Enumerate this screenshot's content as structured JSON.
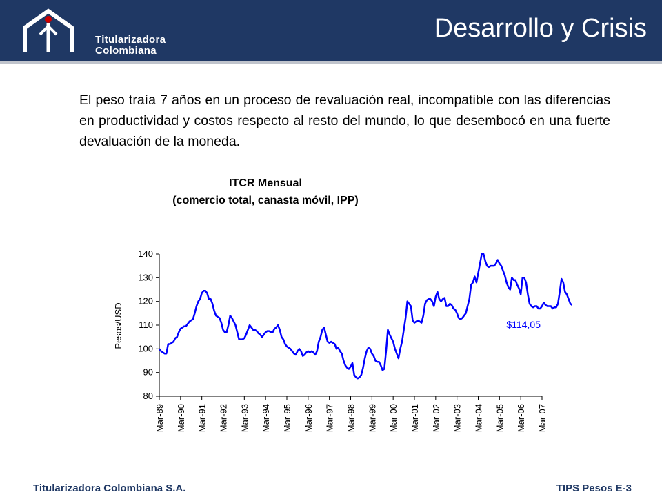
{
  "header": {
    "title": "Desarrollo y Crisis",
    "logo_line1": "Titularizadora",
    "logo_line2": "Colombiana",
    "colors": {
      "bar": "#1f3864",
      "logo_accent": "#cc0000"
    }
  },
  "body": {
    "intro": "El peso traía 7 años en un proceso de revaluación real, incompatible con las diferencias en productividad y costos respecto al resto del mundo, lo que desembocó en una fuerte devaluación de la moneda."
  },
  "footer": {
    "company": "Titularizadora Colombiana S.A.",
    "code": "TIPS Pesos E-3"
  },
  "chart_data": {
    "type": "line",
    "title": "ITCR Mensual",
    "subtitle": "(comercio total, canasta móvil, IPP)",
    "ylabel": "Pesos/USD",
    "xlabel": "",
    "ylim": [
      80,
      140
    ],
    "yticks": [
      80,
      90,
      100,
      110,
      120,
      130,
      140
    ],
    "xticks": [
      "Mar-89",
      "Mar-90",
      "Mar-91",
      "Mar-92",
      "Mar-93",
      "Mar-94",
      "Mar-95",
      "Mar-96",
      "Mar-97",
      "Mar-98",
      "Mar-99",
      "Mar-00",
      "Mar-01",
      "Mar-02",
      "Mar-03",
      "Mar-04",
      "Mar-05",
      "Mar-06",
      "Mar-07"
    ],
    "last_value_label": "$114,05",
    "line_color": "#0000ff",
    "grid": false,
    "legend": "none",
    "series": [
      {
        "x_start": "1989-03",
        "values": [
          100,
          99,
          98.5,
          98,
          98,
          102,
          102,
          102.5,
          103,
          104.5,
          105,
          107,
          108.5,
          109,
          109.5,
          109.5,
          110.5,
          111.5,
          112,
          112.5,
          115,
          118,
          120,
          121,
          123.5,
          124.5,
          124.5,
          123.5,
          121,
          121,
          119,
          116,
          114,
          113.5,
          113,
          111,
          108,
          107,
          107,
          110,
          114,
          113,
          111.5,
          110,
          107,
          104,
          104,
          104,
          104.5,
          106,
          108,
          110,
          109,
          108,
          108,
          107.5,
          106.5,
          106,
          105,
          106,
          107,
          107.5,
          107.5,
          107,
          107,
          108.5,
          109,
          110,
          108,
          105,
          104,
          102,
          101,
          100.5,
          100,
          99,
          98,
          97.5,
          99,
          100,
          99,
          97,
          97.5,
          98.5,
          99,
          98.5,
          99,
          98.5,
          97.5,
          99,
          103,
          105,
          108,
          109,
          106,
          103,
          102.5,
          103,
          102.5,
          102,
          100,
          100.5,
          99,
          98,
          95,
          93,
          92,
          91.5,
          92.5,
          94,
          89,
          88,
          87.5,
          88,
          89,
          92,
          96,
          99,
          100.5,
          100,
          98,
          97,
          95,
          94.5,
          94.5,
          93,
          91,
          91.5,
          99,
          108,
          106,
          104.5,
          103,
          100,
          98,
          96,
          100,
          103,
          108,
          113,
          120,
          119,
          118,
          112,
          111,
          111.5,
          112,
          111.5,
          111,
          114,
          119,
          120.5,
          121,
          121,
          120,
          118,
          122,
          124,
          121,
          120,
          121,
          121.5,
          118,
          118,
          119,
          118.5,
          117,
          116.5,
          115,
          113,
          112.5,
          113,
          114,
          115,
          118,
          121,
          127,
          128,
          130.5,
          128,
          132,
          136,
          140,
          140,
          137,
          135,
          134.5,
          135,
          135,
          135,
          136,
          137.5,
          136,
          135,
          133,
          131,
          128,
          126,
          125,
          130,
          129,
          129,
          127,
          125.5,
          123,
          130,
          130,
          128,
          123,
          119,
          118,
          117.5,
          118,
          118,
          117,
          117,
          118,
          119.5,
          118.5,
          118,
          118,
          118,
          117,
          117.5,
          117.5,
          119,
          124,
          129.5,
          128,
          124,
          123,
          121,
          119,
          118.5,
          116,
          116,
          115.5,
          116,
          114.05
        ]
      }
    ]
  }
}
